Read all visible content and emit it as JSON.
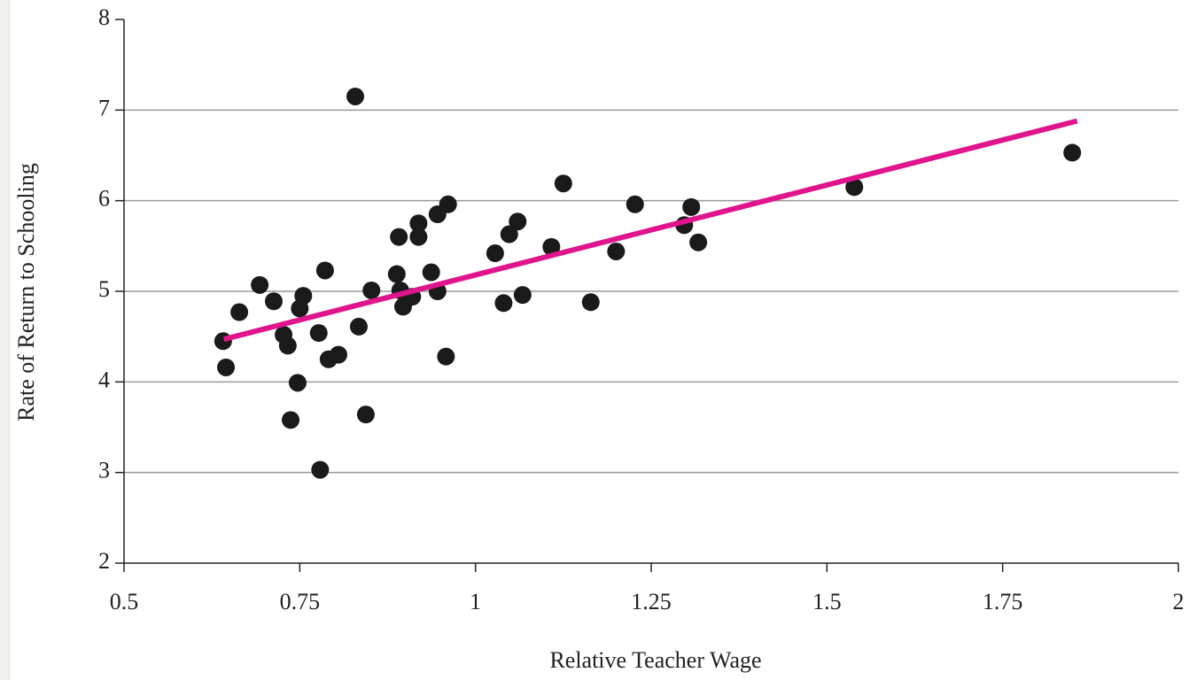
{
  "chart_data": {
    "type": "scatter",
    "xlabel": "Relative Teacher Wage",
    "ylabel": "Rate of Return to Schooling",
    "xlim": [
      0.5,
      2
    ],
    "xticks": [
      0.5,
      0.75,
      1,
      1.25,
      1.5,
      1.75,
      2
    ],
    "ylim": [
      2,
      8
    ],
    "yticks": [
      2,
      3,
      4,
      5,
      6,
      7,
      8
    ],
    "grid": true,
    "series": [
      {
        "color": "#1a1a1a",
        "x": [
          0.641,
          0.645,
          0.664,
          0.693,
          0.713,
          0.727,
          0.733,
          0.737,
          0.747,
          0.75,
          0.755,
          0.777,
          0.779,
          0.786,
          0.791,
          0.805,
          0.829,
          0.834,
          0.844,
          0.852,
          0.888,
          0.891,
          0.893,
          0.897,
          0.91,
          0.919,
          0.919,
          0.937,
          0.946,
          0.946,
          0.958,
          0.961,
          1.028,
          1.04,
          1.048,
          1.06,
          1.067,
          1.108,
          1.125,
          1.164,
          1.2,
          1.227,
          1.297,
          1.307,
          1.317,
          1.539,
          1.849
        ],
        "values": [
          4.45,
          4.16,
          4.77,
          5.07,
          4.89,
          4.52,
          4.4,
          3.58,
          3.99,
          4.81,
          4.95,
          4.54,
          3.03,
          5.23,
          4.25,
          4.3,
          7.15,
          4.61,
          3.64,
          5.01,
          5.19,
          5.6,
          5.01,
          4.83,
          4.94,
          5.6,
          5.75,
          5.21,
          5.0,
          5.85,
          4.28,
          5.96,
          5.42,
          4.87,
          5.63,
          5.77,
          4.96,
          5.49,
          6.19,
          4.88,
          5.44,
          5.96,
          5.73,
          5.93,
          5.54,
          6.15,
          6.53
        ]
      }
    ],
    "trendline": {
      "color": "#e0148c",
      "x": [
        0.642,
        1.856
      ],
      "values": [
        4.47,
        6.88
      ]
    }
  }
}
